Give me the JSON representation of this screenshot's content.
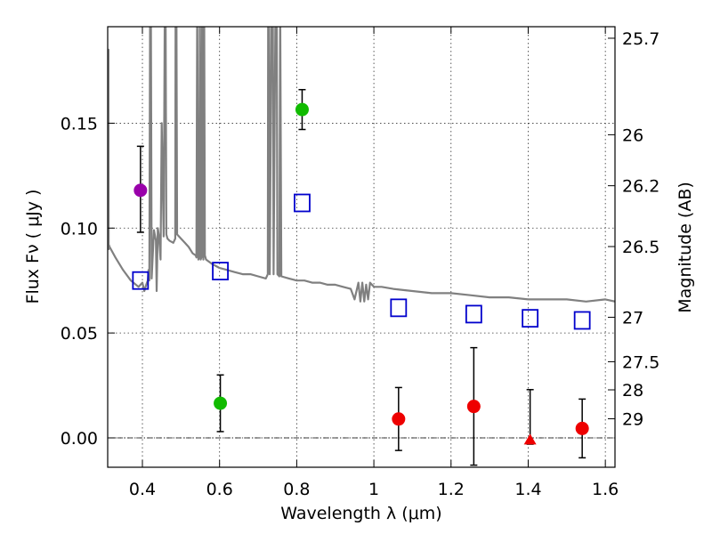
{
  "chart_data": {
    "type": "scatter",
    "title": "",
    "xlabel": "Wavelength  λ (μm)",
    "ylabel": "Flux  Fν  ( μJy )",
    "ylabel_right": "Magnitude (AB)",
    "xlim": [
      0.31,
      1.625
    ],
    "ylim": [
      -0.014,
      0.196
    ],
    "x_ticks": [
      0.4,
      0.6,
      0.8,
      1.0,
      1.2,
      1.4,
      1.6
    ],
    "x_tick_labels": [
      "0.4",
      "0.6",
      "0.8",
      "1",
      "1.2",
      "1.4",
      "1.6"
    ],
    "y_ticks": [
      0.0,
      0.05,
      0.1,
      0.15
    ],
    "y_tick_labels": [
      "0.00",
      "0.05",
      "0.10",
      "0.15"
    ],
    "right_ticks": [
      {
        "flux": 0.1905,
        "label": "25.7"
      },
      {
        "flux": 0.1445,
        "label": "26"
      },
      {
        "flux": 0.1202,
        "label": "26.2"
      },
      {
        "flux": 0.0912,
        "label": "26.5"
      },
      {
        "flux": 0.0575,
        "label": "27"
      },
      {
        "flux": 0.0363,
        "label": "27.5"
      },
      {
        "flux": 0.0229,
        "label": "28"
      },
      {
        "flux": 0.0091,
        "label": "29"
      }
    ],
    "grid": true,
    "zero_line": 0.0,
    "colors": {
      "violet": "#9900aa",
      "green": "#11bb00",
      "red": "#ee0000",
      "model_box": "#0000cc",
      "sed": "#808080",
      "errorbar": "#000000"
    },
    "series": [
      {
        "name": "violet photometry",
        "marker": "circle",
        "color": "violet",
        "points": [
          {
            "x": 0.395,
            "y": 0.118,
            "ylow": 0.098,
            "yhigh": 0.139
          }
        ]
      },
      {
        "name": "green photometry",
        "marker": "circle",
        "color": "green",
        "points": [
          {
            "x": 0.602,
            "y": 0.0165,
            "ylow": 0.003,
            "yhigh": 0.03
          },
          {
            "x": 0.814,
            "y": 0.1565,
            "ylow": 0.147,
            "yhigh": 0.166
          }
        ]
      },
      {
        "name": "red photometry",
        "marker": "circle",
        "color": "red",
        "points": [
          {
            "x": 1.064,
            "y": 0.009,
            "ylow": -0.006,
            "yhigh": 0.024
          },
          {
            "x": 1.259,
            "y": 0.015,
            "ylow": -0.013,
            "yhigh": 0.043
          },
          {
            "x": 1.54,
            "y": 0.0045,
            "ylow": -0.0095,
            "yhigh": 0.0185
          }
        ]
      },
      {
        "name": "red upper limit",
        "marker": "triangle",
        "color": "red",
        "points": [
          {
            "x": 1.405,
            "y": -0.001,
            "ylow": -0.003,
            "yhigh": 0.023
          }
        ]
      },
      {
        "name": "model band flux",
        "marker": "square-open",
        "color": "model_box",
        "points": [
          {
            "x": 0.395,
            "y": 0.075
          },
          {
            "x": 0.602,
            "y": 0.0795
          },
          {
            "x": 0.814,
            "y": 0.112
          },
          {
            "x": 1.064,
            "y": 0.062
          },
          {
            "x": 1.259,
            "y": 0.059
          },
          {
            "x": 1.405,
            "y": 0.057
          },
          {
            "x": 1.54,
            "y": 0.056
          }
        ]
      }
    ],
    "sed_curve": {
      "name": "model spectrum",
      "color": "sed",
      "x": [
        0.31,
        0.312,
        0.3125,
        0.313,
        0.315,
        0.33,
        0.35,
        0.37,
        0.39,
        0.4,
        0.405,
        0.41,
        0.414,
        0.416,
        0.418,
        0.42,
        0.422,
        0.424,
        0.43,
        0.435,
        0.437,
        0.44,
        0.443,
        0.447,
        0.45,
        0.455,
        0.458,
        0.46,
        0.462,
        0.465,
        0.47,
        0.48,
        0.485,
        0.486,
        0.488,
        0.49,
        0.5,
        0.51,
        0.52,
        0.53,
        0.538,
        0.54,
        0.542,
        0.545,
        0.548,
        0.549,
        0.551,
        0.553,
        0.555,
        0.556,
        0.558,
        0.56,
        0.562,
        0.565,
        0.58,
        0.6,
        0.62,
        0.64,
        0.66,
        0.68,
        0.7,
        0.72,
        0.725,
        0.726,
        0.728,
        0.73,
        0.735,
        0.738,
        0.74,
        0.745,
        0.748,
        0.75,
        0.755,
        0.757,
        0.76,
        0.78,
        0.8,
        0.82,
        0.84,
        0.86,
        0.88,
        0.9,
        0.92,
        0.94,
        0.95,
        0.96,
        0.965,
        0.97,
        0.975,
        0.98,
        0.985,
        0.99,
        1.0,
        1.02,
        1.05,
        1.1,
        1.15,
        1.2,
        1.25,
        1.3,
        1.35,
        1.4,
        1.45,
        1.5,
        1.55,
        1.6,
        1.625
      ],
      "y": [
        0.185,
        0.185,
        0.09,
        0.092,
        0.091,
        0.086,
        0.08,
        0.075,
        0.072,
        0.074,
        0.07,
        0.073,
        0.075,
        0.08,
        0.075,
        0.21,
        0.21,
        0.076,
        0.099,
        0.094,
        0.07,
        0.1,
        0.096,
        0.085,
        0.15,
        0.096,
        0.21,
        0.21,
        0.097,
        0.095,
        0.094,
        0.093,
        0.095,
        0.21,
        0.21,
        0.097,
        0.095,
        0.093,
        0.091,
        0.088,
        0.087,
        0.086,
        0.21,
        0.085,
        0.086,
        0.21,
        0.085,
        0.086,
        0.21,
        0.21,
        0.085,
        0.21,
        0.087,
        0.085,
        0.083,
        0.081,
        0.08,
        0.079,
        0.078,
        0.078,
        0.077,
        0.076,
        0.078,
        0.21,
        0.21,
        0.078,
        0.21,
        0.21,
        0.078,
        0.21,
        0.21,
        0.078,
        0.077,
        0.21,
        0.077,
        0.076,
        0.075,
        0.075,
        0.074,
        0.074,
        0.073,
        0.073,
        0.072,
        0.071,
        0.066,
        0.074,
        0.065,
        0.074,
        0.065,
        0.073,
        0.066,
        0.074,
        0.072,
        0.072,
        0.071,
        0.07,
        0.069,
        0.069,
        0.068,
        0.067,
        0.067,
        0.066,
        0.066,
        0.066,
        0.065,
        0.066,
        0.065
      ]
    }
  }
}
